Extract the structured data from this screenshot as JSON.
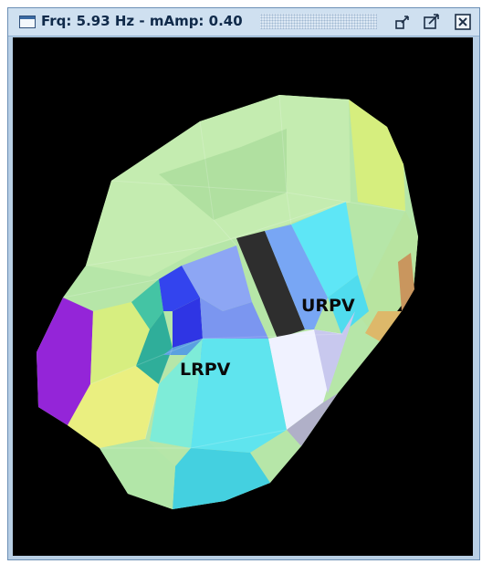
{
  "window": {
    "title": "Frq: 5.93 Hz - mAmp: 0.40",
    "icons": {
      "app": "window-icon",
      "minimize": "minimize-icon",
      "maximize": "maximize-icon",
      "close": "close-icon"
    }
  },
  "scene": {
    "background": "#000000",
    "labels": {
      "urpv": "URPV",
      "lrpv": "LRPV"
    }
  }
}
